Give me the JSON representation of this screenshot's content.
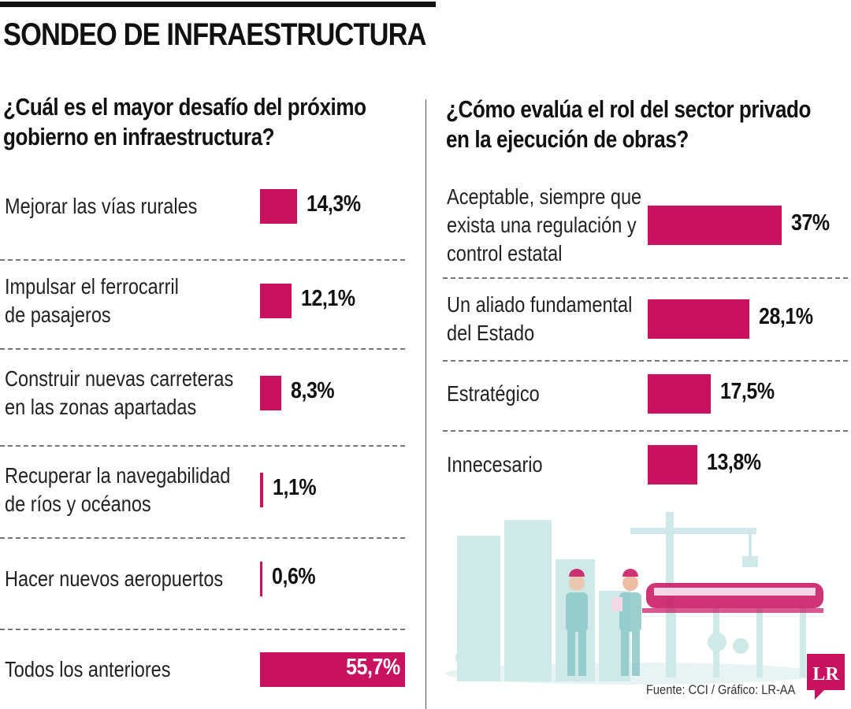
{
  "header": {
    "title": "SONDEO DE INFRAESTRUCTURA"
  },
  "colors": {
    "bar": "#c8115f",
    "illustration": "#a9d8d8",
    "logo": "#c8115f"
  },
  "chart_data": [
    {
      "type": "bar",
      "orientation": "horizontal",
      "title": "¿Cuál es el mayor desafío del próximo gobierno en infraestructura?",
      "title_lines": [
        "¿Cuál es el mayor desafío del próximo",
        "gobierno en infraestructura?"
      ],
      "unit": "%",
      "max_value": 55.7,
      "categories": [
        {
          "lines": [
            "Mejorar las vías rurales"
          ]
        },
        {
          "lines": [
            "Impulsar el ferrocarril",
            "de pasajeros"
          ]
        },
        {
          "lines": [
            "Construir nuevas carreteras",
            "en las zonas apartadas"
          ]
        },
        {
          "lines": [
            "Recuperar la navegabilidad",
            "de ríos y océanos"
          ]
        },
        {
          "lines": [
            "Hacer nuevos aeropuertos"
          ]
        },
        {
          "lines": [
            "Todos los anteriores"
          ]
        }
      ],
      "values": [
        14.3,
        12.1,
        8.3,
        1.1,
        0.6,
        55.7
      ],
      "value_labels": [
        "14,3%",
        "12,1%",
        "8,3%",
        "1,1%",
        "0,6%",
        "55,7%"
      ]
    },
    {
      "type": "bar",
      "orientation": "horizontal",
      "title": "¿Cómo evalúa el rol del sector privado en la ejecución de obras?",
      "title_lines": [
        "¿Cómo evalúa el rol del sector privado",
        "en la ejecución de obras?"
      ],
      "unit": "%",
      "max_value": 37,
      "categories": [
        {
          "lines": [
            "Aceptable, siempre que",
            "exista una regulación y",
            "control estatal"
          ]
        },
        {
          "lines": [
            "Un aliado fundamental",
            "del Estado"
          ]
        },
        {
          "lines": [
            "Estratégico"
          ]
        },
        {
          "lines": [
            "Innecesario"
          ]
        }
      ],
      "values": [
        37,
        28.1,
        17.5,
        13.8
      ],
      "value_labels": [
        "37%",
        "28,1%",
        "17,5%",
        "13,8%"
      ]
    }
  ],
  "footer": {
    "source": "Fuente: CCI / Gráfico: LR-AA"
  },
  "logo": {
    "text": "LR"
  }
}
